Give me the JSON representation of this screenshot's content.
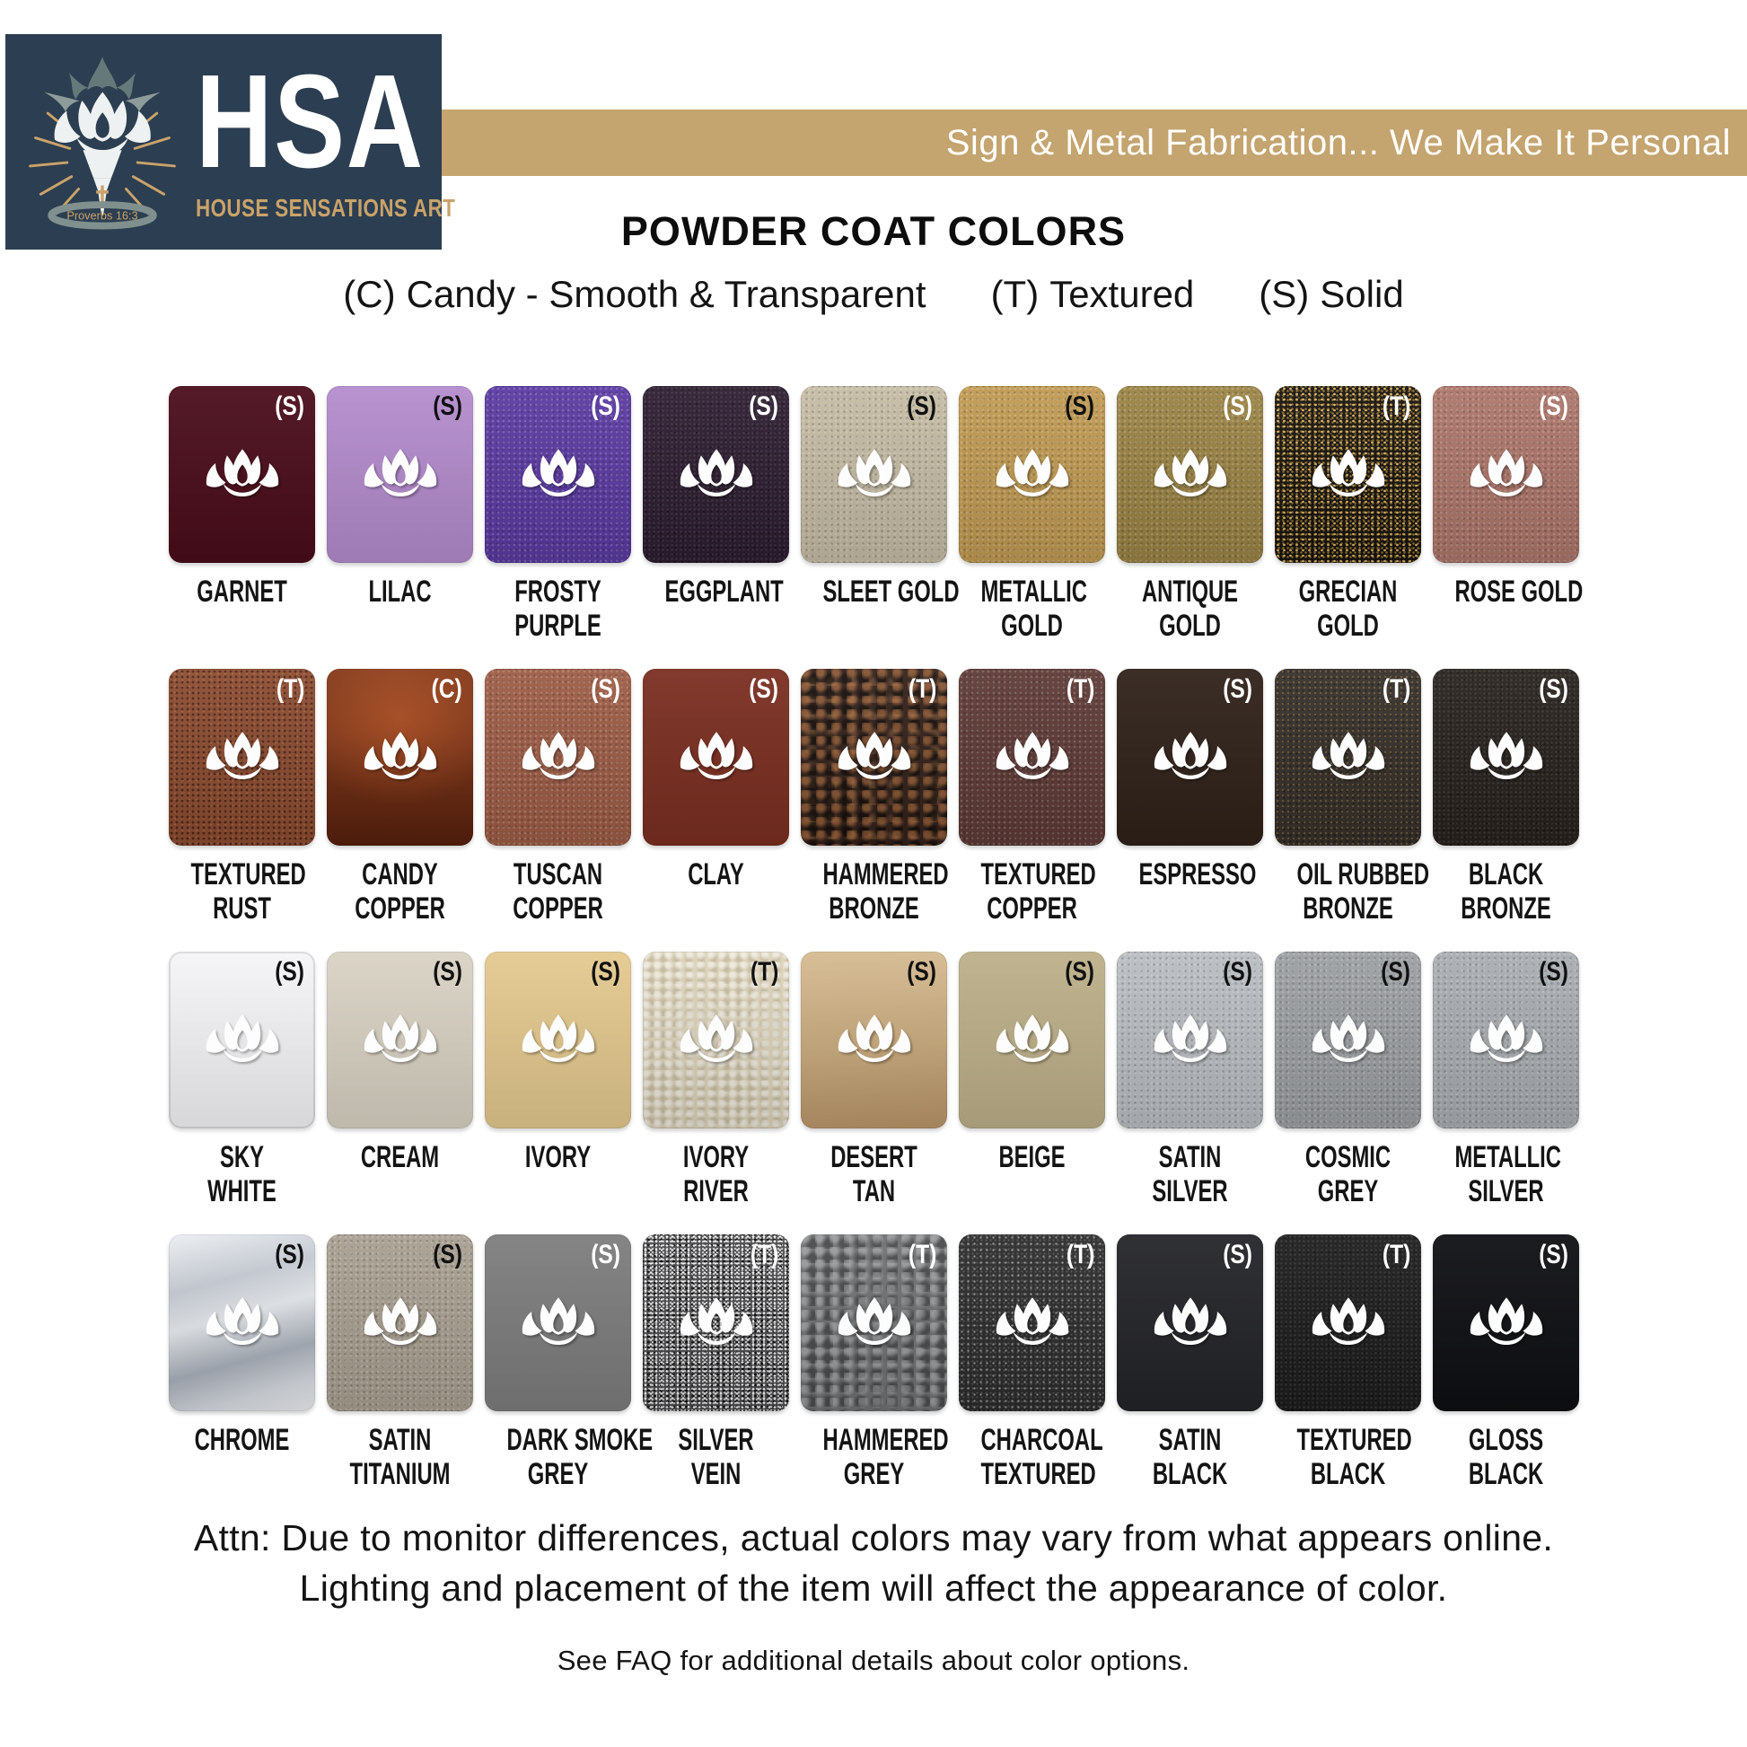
{
  "brand": {
    "abbr": "HSA",
    "name": "HOUSE SENSATIONS ART",
    "verse": "Proverbs 16:3",
    "navy_color": "#2c3e51",
    "gold_color": "#c9a36a"
  },
  "banner": {
    "text": "Sign & Metal Fabrication... We Make It Personal",
    "bg": "#c4a46f",
    "text_color": "#ffffff"
  },
  "title": "POWDER COAT COLORS",
  "legend": {
    "items": [
      {
        "code": "(C)",
        "label": "Candy - Smooth & Transparent"
      },
      {
        "code": "(T)",
        "label": "Textured"
      },
      {
        "code": "(S)",
        "label": "Solid"
      }
    ]
  },
  "swatch_grid": {
    "rows": [
      [
        {
          "name": "GARNET",
          "lines": [
            "GARNET"
          ],
          "type": "S",
          "type_color": "#ffffff",
          "color": "#4a0c1a",
          "finish": "smooth"
        },
        {
          "name": "LILAC",
          "lines": [
            "LILAC"
          ],
          "type": "S",
          "type_color": "#111111",
          "color": "#b48ccd",
          "finish": "smooth"
        },
        {
          "name": "FROSTY PURPLE",
          "lines": [
            "FROSTY",
            "PURPLE"
          ],
          "type": "S",
          "type_color": "#ffffff",
          "color": "#5a3aa2",
          "finish": "noise"
        },
        {
          "name": "EGGPLANT",
          "lines": [
            "EGGPLANT"
          ],
          "type": "S",
          "type_color": "#ffffff",
          "color": "#2c1d30",
          "finish": "noise-dark"
        },
        {
          "name": "SLEET GOLD",
          "lines": [
            "SLEET GOLD"
          ],
          "type": "S",
          "type_color": "#111111",
          "color": "#c5bca4",
          "finish": "noise"
        },
        {
          "name": "METALLIC GOLD",
          "lines": [
            "METALLIC",
            "GOLD"
          ],
          "type": "S",
          "type_color": "#111111",
          "color": "#c09a52",
          "finish": "noise"
        },
        {
          "name": "ANTIQUE GOLD",
          "lines": [
            "ANTIQUE",
            "GOLD"
          ],
          "type": "S",
          "type_color": "#ffffff",
          "color": "#9a8344",
          "finish": "noise"
        },
        {
          "name": "GRECIAN GOLD",
          "lines": [
            "GRECIAN",
            "GOLD"
          ],
          "type": "T",
          "type_color": "#ffffff",
          "color": "#17130c",
          "finish": "gold-fleck"
        },
        {
          "name": "ROSE GOLD",
          "lines": [
            "ROSE GOLD"
          ],
          "type": "S",
          "type_color": "#ffffff",
          "color": "#ad766a",
          "finish": "noise"
        }
      ],
      [
        {
          "name": "TEXTURED RUST",
          "lines": [
            "TEXTURED",
            "RUST"
          ],
          "type": "T",
          "type_color": "#ffffff",
          "color": "#8c4c31",
          "finish": "rust-speckle"
        },
        {
          "name": "CANDY COPPER",
          "lines": [
            "CANDY",
            "COPPER"
          ],
          "type": "C",
          "type_color": "#ffffff",
          "color": "#7c3315",
          "finish": "candy"
        },
        {
          "name": "TUSCAN COPPER",
          "lines": [
            "TUSCAN",
            "COPPER"
          ],
          "type": "S",
          "type_color": "#ffffff",
          "color": "#9d5c45",
          "finish": "noise"
        },
        {
          "name": "CLAY",
          "lines": [
            "CLAY"
          ],
          "type": "S",
          "type_color": "#ffffff",
          "color": "#7a2e20",
          "finish": "smooth"
        },
        {
          "name": "HAMMERED BRONZE",
          "lines": [
            "HAMMERED",
            "BRONZE"
          ],
          "type": "T",
          "type_color": "#ffffff",
          "color": "#33211a",
          "finish": "hammered-bronze"
        },
        {
          "name": "TEXTURED COPPER",
          "lines": [
            "TEXTURED",
            "COPPER"
          ],
          "type": "T",
          "type_color": "#ffffff",
          "color": "#5e3a36",
          "finish": "noise"
        },
        {
          "name": "ESPRESSO",
          "lines": [
            "ESPRESSO"
          ],
          "type": "S",
          "type_color": "#ffffff",
          "color": "#2f2119",
          "finish": "smooth"
        },
        {
          "name": "OIL RUBBED BRONZE",
          "lines": [
            "OIL RUBBED",
            "BRONZE"
          ],
          "type": "T",
          "type_color": "#ffffff",
          "color": "#36302a",
          "finish": "bronze-fleck"
        },
        {
          "name": "BLACK BRONZE",
          "lines": [
            "BLACK",
            "BRONZE"
          ],
          "type": "S",
          "type_color": "#ffffff",
          "color": "#27211c",
          "finish": "noise-dark"
        }
      ],
      [
        {
          "name": "SKY WHITE",
          "lines": [
            "SKY",
            "WHITE"
          ],
          "type": "S",
          "type_color": "#111111",
          "color": "#f5f5f7",
          "finish": "smooth",
          "border": "#d9d9d9"
        },
        {
          "name": "CREAM",
          "lines": [
            "CREAM"
          ],
          "type": "S",
          "type_color": "#111111",
          "color": "#d9d2c4",
          "finish": "smooth"
        },
        {
          "name": "IVORY",
          "lines": [
            "IVORY"
          ],
          "type": "S",
          "type_color": "#111111",
          "color": "#e4c98f",
          "finish": "smooth"
        },
        {
          "name": "IVORY RIVER",
          "lines": [
            "IVORY",
            "RIVER"
          ],
          "type": "T",
          "type_color": "#111111",
          "color": "#ddd3ba",
          "finish": "bumpy"
        },
        {
          "name": "DESERT TAN",
          "lines": [
            "DESERT",
            "TAN"
          ],
          "type": "S",
          "type_color": "#111111",
          "color": "#c7a77a",
          "finish": "desert"
        },
        {
          "name": "BEIGE",
          "lines": [
            "BEIGE"
          ],
          "type": "S",
          "type_color": "#111111",
          "color": "#bdb089",
          "finish": "smooth"
        },
        {
          "name": "SATIN SILVER",
          "lines": [
            "SATIN",
            "SILVER"
          ],
          "type": "S",
          "type_color": "#111111",
          "color": "#b9bdc1",
          "finish": "noise"
        },
        {
          "name": "COSMIC GREY",
          "lines": [
            "COSMIC",
            "GREY"
          ],
          "type": "S",
          "type_color": "#111111",
          "color": "#9c9fa2",
          "finish": "noise"
        },
        {
          "name": "METALLIC SILVER",
          "lines": [
            "METALLIC",
            "SILVER"
          ],
          "type": "S",
          "type_color": "#111111",
          "color": "#a9adb1",
          "finish": "noise"
        }
      ],
      [
        {
          "name": "CHROME",
          "lines": [
            "CHROME"
          ],
          "type": "S",
          "type_color": "#111111",
          "color": "#ced3d9",
          "finish": "chrome"
        },
        {
          "name": "SATIN TITANIUM",
          "lines": [
            "SATIN",
            "TITANIUM"
          ],
          "type": "S",
          "type_color": "#111111",
          "color": "#a89f90",
          "finish": "noise"
        },
        {
          "name": "DARK SMOKE GREY",
          "lines": [
            "DARK SMOKE",
            "GREY"
          ],
          "type": "S",
          "type_color": "#ffffff",
          "color": "#7d7d7d",
          "finish": "smooth"
        },
        {
          "name": "SILVER VEIN",
          "lines": [
            "SILVER",
            "VEIN"
          ],
          "type": "T",
          "type_color": "#ffffff",
          "color": "#4a4a4c",
          "finish": "silver-vein"
        },
        {
          "name": "HAMMERED GREY",
          "lines": [
            "HAMMERED",
            "GREY"
          ],
          "type": "T",
          "type_color": "#ffffff",
          "color": "#6f7173",
          "finish": "hammered-grey"
        },
        {
          "name": "CHARCOAL TEXTURED",
          "lines": [
            "CHARCOAL",
            "TEXTURED"
          ],
          "type": "T",
          "type_color": "#ffffff",
          "color": "#2b2b2b",
          "finish": "charcoal-fleck"
        },
        {
          "name": "SATIN BLACK",
          "lines": [
            "SATIN",
            "BLACK"
          ],
          "type": "S",
          "type_color": "#ffffff",
          "color": "#232428",
          "finish": "smooth"
        },
        {
          "name": "TEXTURED BLACK",
          "lines": [
            "TEXTURED",
            "BLACK"
          ],
          "type": "T",
          "type_color": "#ffffff",
          "color": "#1c1c1c",
          "finish": "noise-dark"
        },
        {
          "name": "GLOSS BLACK",
          "lines": [
            "GLOSS",
            "BLACK"
          ],
          "type": "S",
          "type_color": "#ffffff",
          "color": "#0e0f12",
          "finish": "smooth"
        }
      ]
    ]
  },
  "footer": {
    "attn_line1": "Attn: Due to monitor differences, actual colors may vary from what appears online.",
    "attn_line2": "Lighting and placement of the item will affect the appearance of color.",
    "faq": "See FAQ for additional details about color options."
  }
}
